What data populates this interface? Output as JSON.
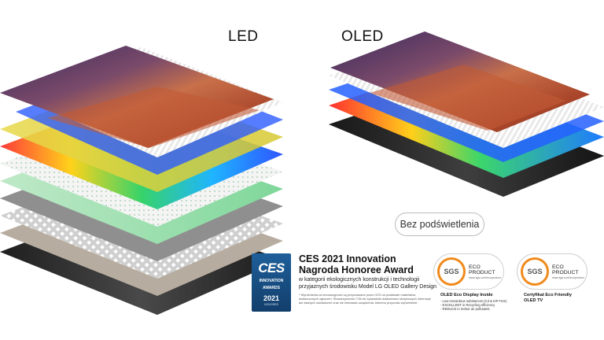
{
  "labels": {
    "led": "LED",
    "oled": "OLED"
  },
  "button": {
    "no_backlight": "Bez podświetlenia"
  },
  "ces": {
    "logo": "CES",
    "badge_line1": "INNOVATION",
    "badge_line2": "AWARDS",
    "year": "2021",
    "honoree": "HONOREE",
    "title_line1": "CES 2021 Innovation",
    "title_line2": "Nagroda Honoree Award",
    "description": "w kategorii ekologicznych konstrukcji i technologii przyjaznych środowisku Model LG OLED Gallery Design",
    "note": "* Wyróżnienia za innowacyjność są przyznawane przez CES na podstawie materiałów dostarczonych zgłoszeń. Stowarzyszenie CTA nie sprawdziło dokładności otrzymanych informacji ani żadnych oświadczeń oraz nie testowało urządzenia, któremu przyznało wyróżnienie."
  },
  "sgs1": {
    "logo": "SGS",
    "eco": "ECO PRODUCT",
    "url": "www.sgs.com/ecoproduct",
    "caption_title": "OLED Eco Display Inside",
    "caption_lines": [
      "- Low Hazardous substances (Cd & InP Free)",
      "- EXCELLENT in Recycling efficiency",
      "- REDUCE in Indoor air pollutants"
    ]
  },
  "sgs2": {
    "logo": "SGS",
    "eco": "ECO PRODUCT",
    "url": "www.sgs.com/ecoproduct",
    "caption_title_1": "Certyfikat Eco Friendly",
    "caption_title_2": "OLED TV"
  },
  "colors": {
    "sgs_orange": "#f08a1c",
    "ces_blue": "#1e5f9a"
  }
}
